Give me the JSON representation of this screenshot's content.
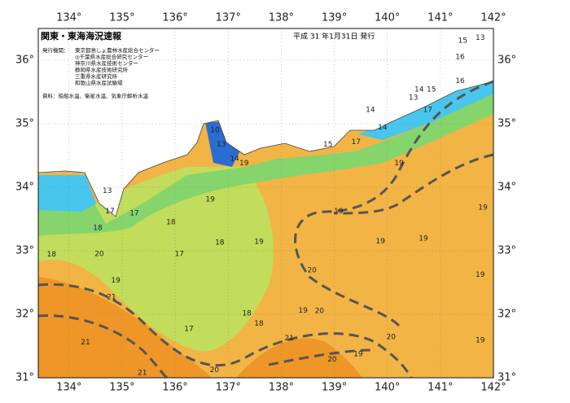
{
  "header": {
    "title": "関東・東海海況速報",
    "issued": "平成 31 年1月31日 発行"
  },
  "info": {
    "agencies_label": "発行機関：",
    "agencies": [
      "東京都島しょ農林水産総合センター",
      "◎千葉県水産総合研究センター",
      "神奈川県水産技術センター",
      "静岡県水産技術研究所",
      "三重県水産研究所",
      "和歌山県水産試験場"
    ],
    "sources": "資料：船舶水温、衛星水温、気象庁解析水温"
  },
  "map": {
    "lon_range": [
      133.42,
      142
    ],
    "lat_range": [
      31,
      36.5
    ],
    "lon_ticks": [
      {
        "value": 134,
        "label": "134°"
      },
      {
        "value": 135,
        "label": "135°"
      },
      {
        "value": 136,
        "label": "136°"
      },
      {
        "value": 137,
        "label": "137°"
      },
      {
        "value": 138,
        "label": "138°"
      },
      {
        "value": 139,
        "label": "139°"
      },
      {
        "value": 140,
        "label": "140°"
      },
      {
        "value": 141,
        "label": "141°"
      },
      {
        "value": 142,
        "label": "142°"
      }
    ],
    "lat_ticks": [
      {
        "value": 31,
        "label": "31°"
      },
      {
        "value": 32,
        "label": "32°"
      },
      {
        "value": 33,
        "label": "33°"
      },
      {
        "value": 34,
        "label": "34°"
      },
      {
        "value": 35,
        "label": "35°"
      },
      {
        "value": 36,
        "label": "36°"
      }
    ],
    "contour_labels": [
      {
        "label": "19",
        "lon": 137.3,
        "lat": 34.38
      },
      {
        "label": "19",
        "lon": 136.66,
        "lat": 33.81
      },
      {
        "label": "18",
        "lon": 135.92,
        "lat": 33.45
      },
      {
        "label": "18",
        "lon": 136.84,
        "lat": 33.13
      },
      {
        "label": "19",
        "lon": 137.58,
        "lat": 33.14
      },
      {
        "label": "17",
        "lon": 136.08,
        "lat": 32.95
      },
      {
        "label": "18",
        "lon": 134.54,
        "lat": 33.36
      },
      {
        "label": "18",
        "lon": 133.67,
        "lat": 32.94
      },
      {
        "label": "20",
        "lon": 134.57,
        "lat": 32.95
      },
      {
        "label": "19",
        "lon": 134.88,
        "lat": 32.53
      },
      {
        "label": "21",
        "lon": 134.8,
        "lat": 32.27
      },
      {
        "label": "21",
        "lon": 134.31,
        "lat": 31.56
      },
      {
        "label": "17",
        "lon": 136.26,
        "lat": 31.77
      },
      {
        "label": "18",
        "lon": 137.35,
        "lat": 32.01
      },
      {
        "label": "18",
        "lon": 137.58,
        "lat": 31.85
      },
      {
        "label": "21",
        "lon": 138.15,
        "lat": 31.62
      },
      {
        "label": "20",
        "lon": 136.74,
        "lat": 31.12
      },
      {
        "label": "21",
        "lon": 135.38,
        "lat": 31.08
      },
      {
        "label": "20",
        "lon": 138.58,
        "lat": 32.69
      },
      {
        "label": "20",
        "lon": 138.72,
        "lat": 32.05
      },
      {
        "label": "19",
        "lon": 138.41,
        "lat": 32.06
      },
      {
        "label": "20",
        "lon": 138.96,
        "lat": 31.29
      },
      {
        "label": "19",
        "lon": 139.45,
        "lat": 31.37
      },
      {
        "label": "20",
        "lon": 140.07,
        "lat": 31.64
      },
      {
        "label": "19",
        "lon": 141.75,
        "lat": 31.59
      },
      {
        "label": "19",
        "lon": 141.75,
        "lat": 32.62
      },
      {
        "label": "19",
        "lon": 141.8,
        "lat": 33.68
      },
      {
        "label": "19",
        "lon": 140.22,
        "lat": 34.38
      },
      {
        "label": "19",
        "lon": 139.08,
        "lat": 33.62
      },
      {
        "label": "19",
        "lon": 139.87,
        "lat": 33.15
      },
      {
        "label": "19",
        "lon": 140.68,
        "lat": 33.19
      },
      {
        "label": "17",
        "lon": 139.41,
        "lat": 34.71
      },
      {
        "label": "17",
        "lon": 140.76,
        "lat": 35.22
      },
      {
        "label": "15",
        "lon": 138.88,
        "lat": 34.67
      },
      {
        "label": "16",
        "lon": 141.37,
        "lat": 35.67
      },
      {
        "label": "16",
        "lon": 141.37,
        "lat": 36.05
      },
      {
        "label": "15",
        "lon": 141.42,
        "lat": 36.31
      },
      {
        "label": "13",
        "lon": 141.75,
        "lat": 36.35
      },
      {
        "label": "14",
        "lon": 140.6,
        "lat": 35.54
      },
      {
        "label": "13",
        "lon": 140.49,
        "lat": 35.41
      },
      {
        "label": "15",
        "lon": 140.83,
        "lat": 35.54
      },
      {
        "label": "14",
        "lon": 139.68,
        "lat": 35.22
      },
      {
        "label": "14",
        "lon": 139.91,
        "lat": 34.94
      },
      {
        "label": "10",
        "lon": 136.75,
        "lat": 34.9
      },
      {
        "label": "13",
        "lon": 136.87,
        "lat": 34.67
      },
      {
        "label": "14",
        "lon": 137.12,
        "lat": 34.45
      },
      {
        "label": "17",
        "lon": 134.77,
        "lat": 33.62
      },
      {
        "label": "13",
        "lon": 134.72,
        "lat": 33.94
      },
      {
        "label": "17",
        "lon": 135.23,
        "lat": 33.59
      }
    ]
  }
}
